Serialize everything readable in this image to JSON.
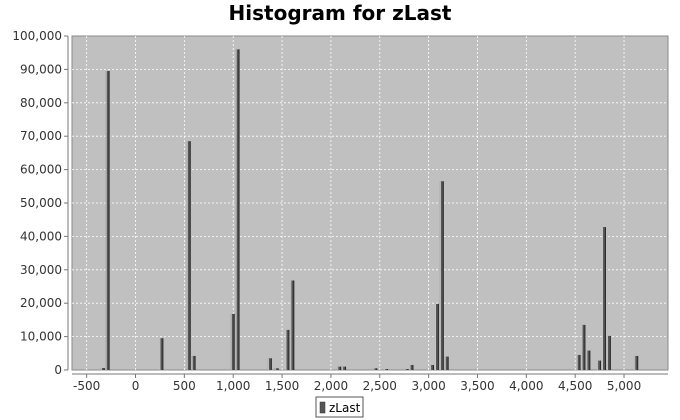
{
  "chart_data": {
    "type": "bar",
    "title": "Histogram for zLast",
    "xlabel": "",
    "ylabel": "",
    "xlim": [
      -650,
      5450
    ],
    "ylim": [
      0,
      100000
    ],
    "x_ticks": [
      -500,
      0,
      500,
      1000,
      1500,
      2000,
      2500,
      3000,
      3500,
      4000,
      4500,
      5000
    ],
    "x_tick_labels": [
      "-500",
      "0",
      "500",
      "1,000",
      "1,500",
      "2,000",
      "2,500",
      "3,000",
      "3,500",
      "4,000",
      "4,500",
      "5,000"
    ],
    "y_ticks": [
      0,
      10000,
      20000,
      30000,
      40000,
      50000,
      60000,
      70000,
      80000,
      90000,
      100000
    ],
    "y_tick_labels": [
      "0",
      "10,000",
      "20,000",
      "30,000",
      "40,000",
      "50,000",
      "60,000",
      "70,000",
      "80,000",
      "90,000",
      "100,000"
    ],
    "grid": true,
    "legend_position": "bottom",
    "colors": {
      "bar": "#555555",
      "plot_background": "#c0c0c0",
      "grid": "#ffffff"
    },
    "series": [
      {
        "name": "zLast",
        "bin_width": 50,
        "bins": [
          {
            "x": -330,
            "value": 600
          },
          {
            "x": -280,
            "value": 89500
          },
          {
            "x": 270,
            "value": 9500
          },
          {
            "x": 550,
            "value": 68500
          },
          {
            "x": 600,
            "value": 4200
          },
          {
            "x": 1000,
            "value": 16800
          },
          {
            "x": 1050,
            "value": 96000
          },
          {
            "x": 1380,
            "value": 3500
          },
          {
            "x": 1450,
            "value": 500
          },
          {
            "x": 1560,
            "value": 12000
          },
          {
            "x": 1610,
            "value": 26800
          },
          {
            "x": 2090,
            "value": 1000
          },
          {
            "x": 2140,
            "value": 1000
          },
          {
            "x": 2460,
            "value": 500
          },
          {
            "x": 2570,
            "value": 300
          },
          {
            "x": 2780,
            "value": 300
          },
          {
            "x": 2830,
            "value": 1500
          },
          {
            "x": 3040,
            "value": 1500
          },
          {
            "x": 3090,
            "value": 19800
          },
          {
            "x": 3140,
            "value": 56500
          },
          {
            "x": 3190,
            "value": 4000
          },
          {
            "x": 4540,
            "value": 4500
          },
          {
            "x": 4590,
            "value": 13500
          },
          {
            "x": 4640,
            "value": 5800
          },
          {
            "x": 4750,
            "value": 2800
          },
          {
            "x": 4800,
            "value": 42800
          },
          {
            "x": 4850,
            "value": 10200
          },
          {
            "x": 5130,
            "value": 4200
          }
        ]
      }
    ]
  }
}
